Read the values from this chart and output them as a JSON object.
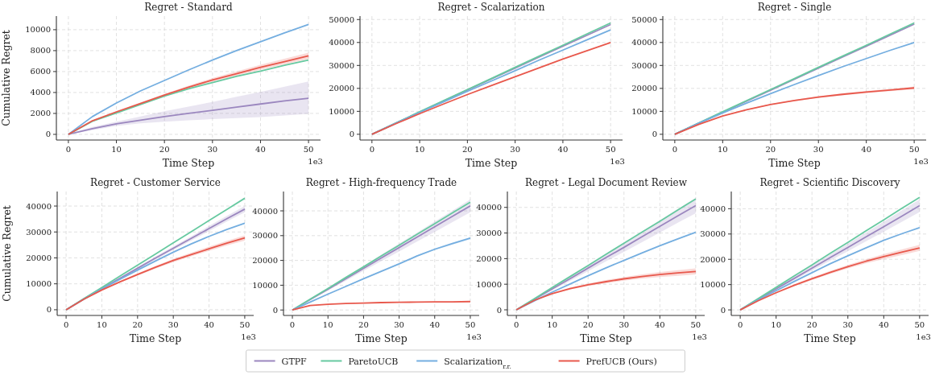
{
  "chart_data": [
    {
      "type": "line",
      "title": "Regret - Standard",
      "xlabel": "Time Step",
      "ylabel": "Cumulative Regret",
      "annotations": [
        "1e3"
      ],
      "x": [
        0,
        5,
        10,
        15,
        20,
        25,
        30,
        35,
        40,
        45,
        50
      ],
      "xlim": [
        -2.5,
        52.5
      ],
      "xticks": [
        0,
        10,
        20,
        30,
        40,
        50
      ],
      "ylim": [
        -540,
        11300
      ],
      "yticks": [
        0,
        2000,
        4000,
        6000,
        8000,
        10000
      ],
      "grid": true,
      "line_style": "solid",
      "legend": "bottom",
      "series": [
        {
          "name": "GTPF",
          "color": "#9b87bf",
          "values": [
            0,
            550,
            1000,
            1350,
            1700,
            2000,
            2300,
            2600,
            2900,
            3200,
            3450
          ],
          "lower": [
            0,
            400,
            800,
            1050,
            1200,
            1350,
            1450,
            1550,
            1650,
            1800,
            1950
          ],
          "upper": [
            0,
            700,
            1200,
            1700,
            2200,
            2650,
            3100,
            3600,
            4050,
            4550,
            5050
          ]
        },
        {
          "name": "ParetoUCB",
          "color": "#66c9a0",
          "values": [
            0,
            1250,
            2050,
            2850,
            3650,
            4350,
            4950,
            5550,
            6050,
            6600,
            7100
          ]
        },
        {
          "name": "Scalarization$_{r.r.}$",
          "color": "#74aee0",
          "values": [
            0,
            1700,
            3000,
            4150,
            5150,
            6150,
            7100,
            8000,
            8850,
            9700,
            10500
          ]
        },
        {
          "name": "PrefUCB (Ours)",
          "color": "#e8584c",
          "values": [
            0,
            1300,
            2150,
            2950,
            3750,
            4500,
            5200,
            5800,
            6400,
            6950,
            7500
          ],
          "lower": [
            0,
            1270,
            2090,
            2860,
            3630,
            4350,
            5020,
            5590,
            6160,
            6680,
            7200
          ],
          "upper": [
            0,
            1330,
            2210,
            3040,
            3870,
            4650,
            5380,
            6010,
            6640,
            7220,
            7800
          ]
        }
      ]
    },
    {
      "type": "line",
      "title": "Regret - Scalarization",
      "xlabel": "Time Step",
      "annotations": [
        "1e3"
      ],
      "x": [
        0,
        5,
        10,
        15,
        20,
        25,
        30,
        35,
        40,
        45,
        50
      ],
      "xlim": [
        -2.5,
        52.5
      ],
      "xticks": [
        0,
        10,
        20,
        30,
        40,
        50
      ],
      "ylim": [
        -2500,
        51500
      ],
      "yticks": [
        0,
        10000,
        20000,
        30000,
        40000,
        50000
      ],
      "grid": true,
      "line_style": "solid",
      "series": [
        {
          "color": "#9b87bf",
          "values": [
            0,
            4800,
            9700,
            14500,
            19300,
            24100,
            28800,
            33600,
            38400,
            43100,
            47800
          ]
        },
        {
          "color": "#66c9a0",
          "values": [
            0,
            4900,
            9800,
            14700,
            19500,
            24300,
            29200,
            34000,
            38800,
            43700,
            48500
          ]
        },
        {
          "color": "#74aee0",
          "values": [
            0,
            4800,
            9500,
            14100,
            18700,
            23200,
            27700,
            32300,
            36700,
            41100,
            45500
          ]
        },
        {
          "color": "#e8584c",
          "values": [
            0,
            4600,
            9000,
            13200,
            17300,
            21200,
            25100,
            28900,
            32800,
            36400,
            40000
          ]
        }
      ]
    },
    {
      "type": "line",
      "title": "Regret - Single",
      "xlabel": "Time Step",
      "annotations": [
        "1e3"
      ],
      "x": [
        0,
        5,
        10,
        15,
        20,
        25,
        30,
        35,
        40,
        45,
        50
      ],
      "xlim": [
        -2.5,
        52.5
      ],
      "xticks": [
        0,
        10,
        20,
        30,
        40,
        50
      ],
      "ylim": [
        -2500,
        51500
      ],
      "yticks": [
        0,
        10000,
        20000,
        30000,
        40000,
        50000
      ],
      "grid": true,
      "line_style": "solid",
      "series": [
        {
          "color": "#9b87bf",
          "values": [
            0,
            4800,
            9600,
            14400,
            19200,
            24000,
            28800,
            33600,
            38400,
            43200,
            48000
          ]
        },
        {
          "color": "#66c9a0",
          "values": [
            0,
            4900,
            9800,
            14700,
            19500,
            24300,
            29200,
            34000,
            38800,
            43700,
            48500
          ]
        },
        {
          "color": "#74aee0",
          "values": [
            0,
            4800,
            9300,
            13600,
            17700,
            21700,
            25600,
            29400,
            33000,
            36600,
            40000
          ]
        },
        {
          "color": "#e8584c",
          "values": [
            0,
            4300,
            8000,
            10700,
            13000,
            14700,
            16200,
            17400,
            18400,
            19300,
            20200
          ],
          "lower": [
            0,
            4200,
            7900,
            10500,
            12800,
            14400,
            15800,
            17000,
            17900,
            18800,
            19600
          ],
          "upper": [
            0,
            4400,
            8100,
            10900,
            13200,
            15000,
            16600,
            17800,
            18900,
            19800,
            20800
          ]
        }
      ]
    },
    {
      "type": "line",
      "title": "Regret - Customer Service",
      "xlabel": "Time Step",
      "ylabel": "Cumulative Regret",
      "annotations": [
        "1e3"
      ],
      "x": [
        0,
        5,
        10,
        15,
        20,
        25,
        30,
        35,
        40,
        45,
        50
      ],
      "xlim": [
        -2.5,
        52.5
      ],
      "xticks": [
        0,
        10,
        20,
        30,
        40,
        50
      ],
      "ylim": [
        -2200,
        45600
      ],
      "yticks": [
        0,
        10000,
        20000,
        30000,
        40000
      ],
      "grid": true,
      "line_style": "solid",
      "series": [
        {
          "color": "#9b87bf",
          "values": [
            0,
            4200,
            8200,
            12100,
            16000,
            19900,
            23700,
            27500,
            31300,
            35100,
            38800
          ],
          "lower": [
            0,
            4100,
            8000,
            11700,
            15500,
            19300,
            23000,
            26700,
            30300,
            34000,
            37600
          ],
          "upper": [
            0,
            4300,
            8400,
            12500,
            16500,
            20500,
            24400,
            28300,
            32300,
            36200,
            40000
          ]
        },
        {
          "color": "#66c9a0",
          "values": [
            0,
            4300,
            8600,
            12900,
            17200,
            21500,
            25800,
            30100,
            34400,
            38700,
            43000
          ]
        },
        {
          "color": "#74aee0",
          "values": [
            0,
            4100,
            8000,
            11700,
            15300,
            18800,
            22200,
            25400,
            28300,
            31000,
            33400
          ]
        },
        {
          "color": "#e8584c",
          "values": [
            0,
            4100,
            7600,
            10700,
            13600,
            16400,
            19000,
            21300,
            23500,
            25700,
            27700
          ],
          "lower": [
            0,
            4000,
            7400,
            10400,
            13200,
            15900,
            18400,
            20600,
            22700,
            24800,
            26700
          ],
          "upper": [
            0,
            4200,
            7800,
            11000,
            14000,
            16900,
            19600,
            22000,
            24300,
            26600,
            28700
          ]
        }
      ]
    },
    {
      "type": "line",
      "title": "Regret - High-frequency Trade",
      "xlabel": "Time Step",
      "annotations": [
        "1e3"
      ],
      "x": [
        0,
        5,
        10,
        15,
        20,
        25,
        30,
        35,
        40,
        45,
        50
      ],
      "xlim": [
        -2.5,
        52.5
      ],
      "xticks": [
        0,
        10,
        20,
        30,
        40,
        50
      ],
      "ylim": [
        -2200,
        47800
      ],
      "yticks": [
        0,
        10000,
        20000,
        30000,
        40000
      ],
      "grid": true,
      "line_style": "solid",
      "series": [
        {
          "color": "#9b87bf",
          "values": [
            0,
            4200,
            8400,
            12600,
            16800,
            21000,
            25200,
            29400,
            33600,
            37800,
            42000
          ],
          "lower": [
            0,
            3900,
            7900,
            11800,
            15800,
            19700,
            23600,
            27600,
            31500,
            35500,
            39400
          ],
          "upper": [
            0,
            4500,
            8900,
            13400,
            17800,
            22300,
            26800,
            31200,
            35700,
            40100,
            44600
          ]
        },
        {
          "color": "#66c9a0",
          "values": [
            0,
            4400,
            8700,
            13100,
            17400,
            21800,
            26100,
            30500,
            34800,
            39200,
            43500
          ]
        },
        {
          "color": "#74aee0",
          "values": [
            0,
            3200,
            6400,
            9500,
            12600,
            15600,
            18600,
            21800,
            24500,
            26800,
            29000
          ],
          "lower": [
            0,
            3200,
            6300,
            9400,
            12400,
            15400,
            18400,
            21500,
            24200,
            26400,
            28600
          ],
          "upper": [
            0,
            3200,
            6500,
            9600,
            12800,
            15800,
            18800,
            22100,
            24800,
            27200,
            29400
          ]
        },
        {
          "color": "#e8584c",
          "values": [
            0,
            1800,
            2300,
            2600,
            2800,
            3000,
            3100,
            3200,
            3300,
            3300,
            3400
          ]
        }
      ]
    },
    {
      "type": "line",
      "title": "Regret - Legal Document Review",
      "xlabel": "Time Step",
      "annotations": [
        "1e3"
      ],
      "x": [
        0,
        5,
        10,
        15,
        20,
        25,
        30,
        35,
        40,
        45,
        50
      ],
      "xlim": [
        -2.5,
        52.5
      ],
      "xticks": [
        0,
        10,
        20,
        30,
        40,
        50
      ],
      "ylim": [
        -2200,
        46200
      ],
      "yticks": [
        0,
        10000,
        20000,
        30000,
        40000
      ],
      "grid": true,
      "line_style": "solid",
      "series": [
        {
          "color": "#9b87bf",
          "values": [
            0,
            4100,
            8200,
            12200,
            16300,
            20400,
            24400,
            28500,
            32600,
            36700,
            40700
          ],
          "lower": [
            0,
            3800,
            7600,
            11300,
            15100,
            18900,
            22600,
            26400,
            30200,
            34000,
            37700
          ],
          "upper": [
            0,
            4400,
            8800,
            13100,
            17500,
            21900,
            26200,
            30600,
            35000,
            39400,
            43700
          ]
        },
        {
          "color": "#66c9a0",
          "values": [
            0,
            4300,
            8700,
            13000,
            17300,
            21700,
            26000,
            30300,
            34600,
            39000,
            43300
          ]
        },
        {
          "color": "#74aee0",
          "values": [
            0,
            3500,
            6900,
            10100,
            13300,
            16400,
            19300,
            22200,
            25000,
            27700,
            30300
          ]
        },
        {
          "color": "#e8584c",
          "values": [
            0,
            3700,
            6300,
            8300,
            9800,
            11000,
            12100,
            13000,
            13800,
            14400,
            15000
          ],
          "lower": [
            0,
            3600,
            6100,
            7900,
            9300,
            10400,
            11400,
            12200,
            12800,
            13300,
            13800
          ],
          "upper": [
            0,
            3800,
            6500,
            8700,
            10300,
            11600,
            12800,
            13800,
            14800,
            15500,
            16200
          ]
        }
      ]
    },
    {
      "type": "line",
      "title": "Regret - Scientific Discovery",
      "xlabel": "Time Step",
      "annotations": [
        "1e3"
      ],
      "x": [
        0,
        5,
        10,
        15,
        20,
        25,
        30,
        35,
        40,
        45,
        50
      ],
      "xlim": [
        -2.5,
        52.5
      ],
      "xticks": [
        0,
        10,
        20,
        30,
        40,
        50
      ],
      "ylim": [
        -2200,
        46800
      ],
      "yticks": [
        0,
        10000,
        20000,
        30000,
        40000
      ],
      "grid": true,
      "line_style": "solid",
      "series": [
        {
          "color": "#9b87bf",
          "values": [
            0,
            4200,
            8300,
            12400,
            16500,
            20600,
            24700,
            28800,
            32900,
            37000,
            41200
          ],
          "lower": [
            0,
            3900,
            7800,
            11700,
            15500,
            19400,
            23200,
            27100,
            30900,
            34800,
            38700
          ],
          "upper": [
            0,
            4400,
            8800,
            13200,
            17500,
            21900,
            26200,
            30600,
            34900,
            39300,
            43700
          ]
        },
        {
          "color": "#66c9a0",
          "values": [
            0,
            4500,
            8900,
            13400,
            17800,
            22300,
            26700,
            31200,
            35600,
            40100,
            44500
          ]
        },
        {
          "color": "#74aee0",
          "values": [
            0,
            3900,
            7600,
            11200,
            14700,
            18200,
            21400,
            24500,
            27500,
            30100,
            32500
          ]
        },
        {
          "color": "#e8584c",
          "values": [
            0,
            3600,
            6800,
            9700,
            12300,
            14800,
            17100,
            19200,
            21100,
            22800,
            24500
          ],
          "lower": [
            0,
            3500,
            6600,
            9300,
            11800,
            14200,
            16400,
            18400,
            20100,
            21700,
            23300
          ],
          "upper": [
            0,
            3700,
            7000,
            10100,
            12800,
            15400,
            17800,
            20000,
            22100,
            23900,
            25700
          ]
        }
      ]
    }
  ]
}
